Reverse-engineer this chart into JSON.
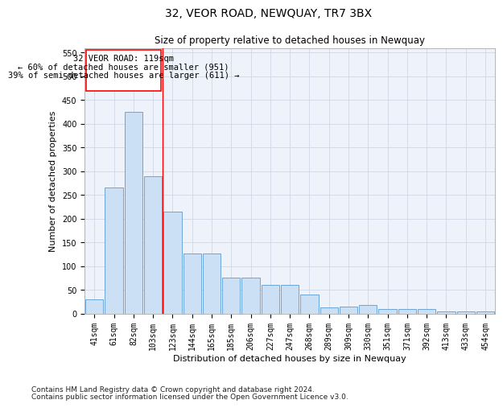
{
  "title": "32, VEOR ROAD, NEWQUAY, TR7 3BX",
  "subtitle": "Size of property relative to detached houses in Newquay",
  "xlabel": "Distribution of detached houses by size in Newquay",
  "ylabel": "Number of detached properties",
  "categories": [
    "41sqm",
    "61sqm",
    "82sqm",
    "103sqm",
    "123sqm",
    "144sqm",
    "165sqm",
    "185sqm",
    "206sqm",
    "227sqm",
    "247sqm",
    "268sqm",
    "289sqm",
    "309sqm",
    "330sqm",
    "351sqm",
    "371sqm",
    "392sqm",
    "413sqm",
    "433sqm",
    "454sqm"
  ],
  "values": [
    30,
    265,
    425,
    290,
    215,
    127,
    127,
    75,
    75,
    60,
    60,
    40,
    13,
    15,
    17,
    10,
    9,
    9,
    4,
    5,
    5
  ],
  "bar_color": "#cce0f5",
  "bar_edge_color": "#5b9bd5",
  "grid_color": "#d0d8e8",
  "bg_color": "#eef2fa",
  "property_line_x": 3.5,
  "annotation_text_line1": "32 VEOR ROAD: 119sqm",
  "annotation_text_line2": "← 60% of detached houses are smaller (951)",
  "annotation_text_line3": "39% of semi-detached houses are larger (611) →",
  "ylim": [
    0,
    560
  ],
  "yticks": [
    0,
    50,
    100,
    150,
    200,
    250,
    300,
    350,
    400,
    450,
    500,
    550
  ],
  "footer_line1": "Contains HM Land Registry data © Crown copyright and database right 2024.",
  "footer_line2": "Contains public sector information licensed under the Open Government Licence v3.0.",
  "title_fontsize": 10,
  "subtitle_fontsize": 8.5,
  "label_fontsize": 8,
  "tick_fontsize": 7,
  "annotation_fontsize": 7.5,
  "footer_fontsize": 6.5
}
